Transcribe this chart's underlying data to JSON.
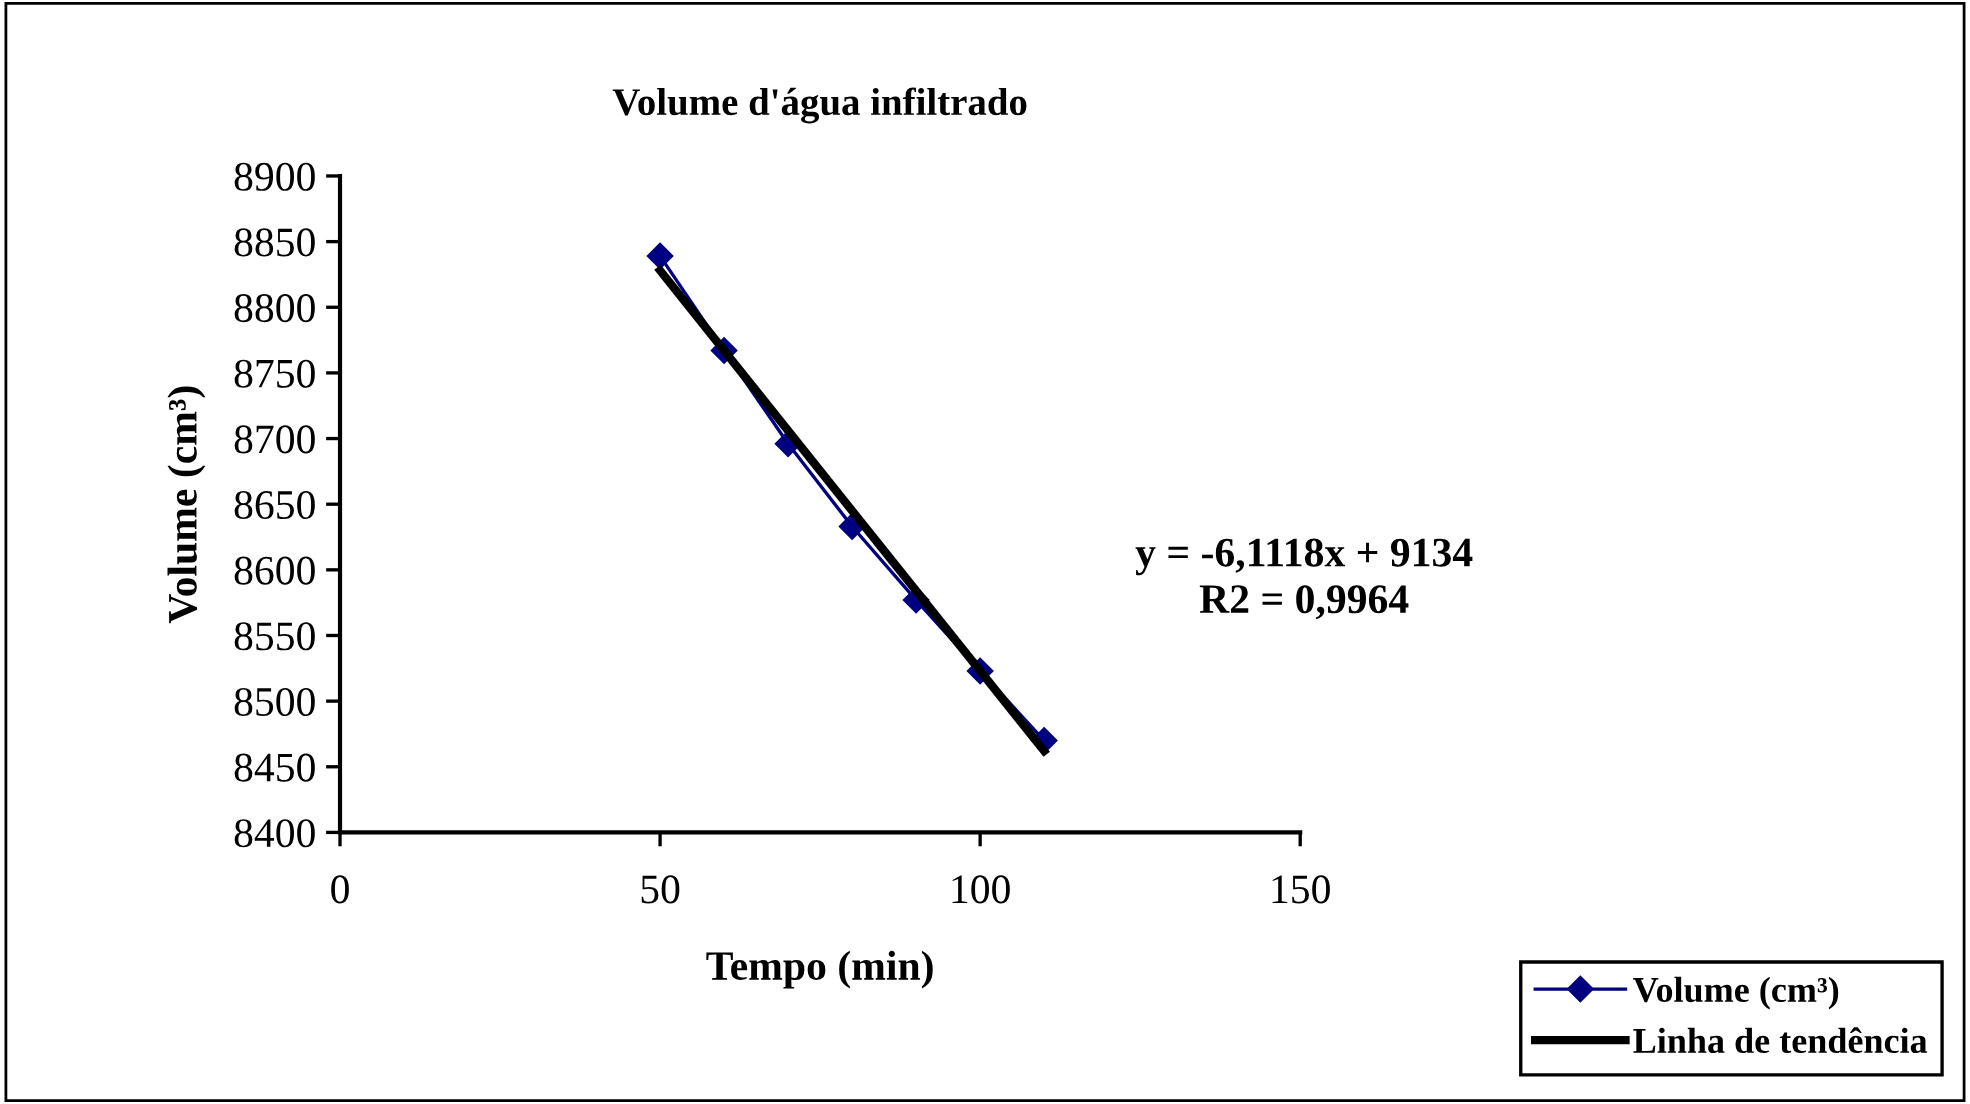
{
  "chart_data": {
    "type": "line",
    "title": "Volume d'água infiltrado",
    "xlabel": "Tempo (min)",
    "ylabel": "Volume (cm³)",
    "x": [
      50,
      60,
      70,
      80,
      90,
      100,
      110
    ],
    "series": [
      {
        "name": "Volume (cm³)",
        "color": "#000080",
        "values": [
          8839,
          8767,
          8696,
          8633,
          8577,
          8523,
          8470
        ],
        "marker": "diamond"
      },
      {
        "name": "Linha de tendência",
        "color": "#000000",
        "type": "line",
        "x": [
          50,
          110
        ],
        "values": [
          8828,
          8462
        ],
        "marker": "none"
      }
    ],
    "xlim": [
      0,
      150
    ],
    "xticks": [
      0,
      50,
      100,
      150
    ],
    "ylim": [
      8400,
      8900
    ],
    "yticks": [
      8400,
      8450,
      8500,
      8550,
      8600,
      8650,
      8700,
      8750,
      8800,
      8850,
      8900
    ],
    "annotations": [
      "y = -6,1118x + 9134\nR2 = 0,9964"
    ],
    "legend": "bottom right",
    "grid": false
  }
}
